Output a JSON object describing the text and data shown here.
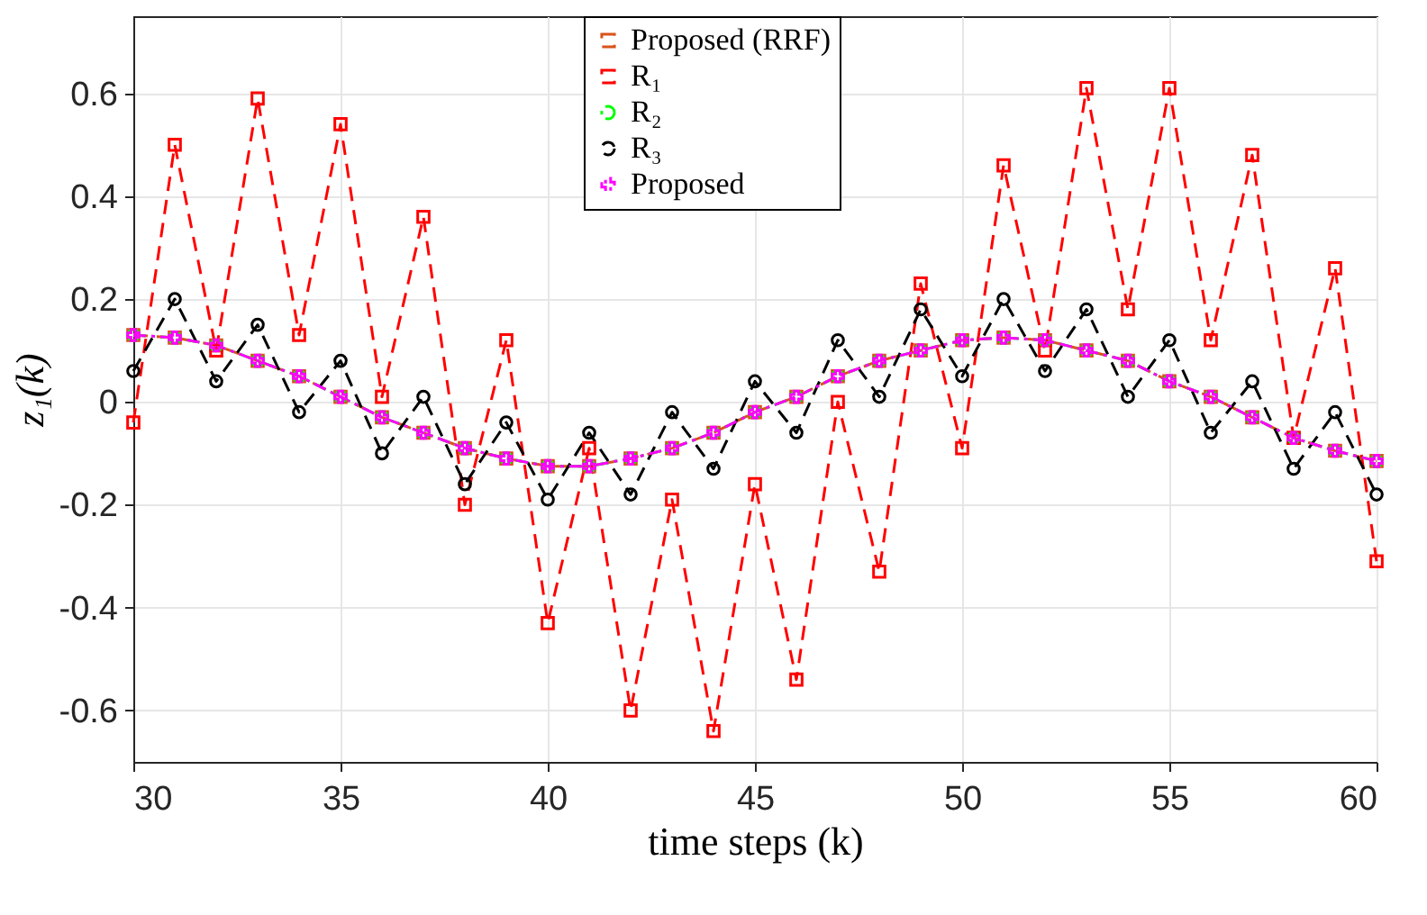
{
  "chart_data": {
    "type": "line",
    "xlabel": "time steps (k)",
    "ylabel": "z₁(k)",
    "x": [
      30,
      31,
      32,
      33,
      34,
      35,
      36,
      37,
      38,
      39,
      40,
      41,
      42,
      43,
      44,
      45,
      46,
      47,
      48,
      49,
      50,
      51,
      52,
      53,
      54,
      55,
      56,
      57,
      58,
      59,
      60
    ],
    "series": [
      {
        "name": "Proposed (RRF)",
        "color": "#d95319",
        "marker": "square",
        "line_style": "dashed",
        "values": [
          0.13,
          0.125,
          0.11,
          0.08,
          0.05,
          0.01,
          -0.03,
          -0.06,
          -0.09,
          -0.11,
          -0.125,
          -0.125,
          -0.11,
          -0.09,
          -0.06,
          -0.02,
          0.01,
          0.05,
          0.08,
          0.1,
          0.12,
          0.125,
          0.12,
          0.1,
          0.08,
          0.04,
          0.01,
          -0.03,
          -0.07,
          -0.095,
          -0.115
        ]
      },
      {
        "name": "R₁",
        "color": "#ff0000",
        "marker": "square",
        "line_style": "dashed",
        "values": [
          -0.04,
          0.5,
          0.1,
          0.59,
          0.13,
          0.54,
          0.01,
          0.36,
          -0.2,
          0.12,
          -0.43,
          -0.09,
          -0.6,
          -0.19,
          -0.64,
          -0.16,
          -0.54,
          0.0,
          -0.33,
          0.23,
          -0.09,
          0.46,
          0.1,
          0.61,
          0.18,
          0.61,
          0.12,
          0.48,
          -0.07,
          0.26,
          -0.31
        ]
      },
      {
        "name": "R₂",
        "color": "#00ff00",
        "marker": "circle",
        "line_style": "dotted",
        "values": [
          0.13,
          0.125,
          0.11,
          0.08,
          0.05,
          0.01,
          -0.03,
          -0.06,
          -0.09,
          -0.11,
          -0.125,
          -0.125,
          -0.11,
          -0.09,
          -0.06,
          -0.02,
          0.01,
          0.05,
          0.08,
          0.1,
          0.12,
          0.125,
          0.12,
          0.1,
          0.08,
          0.04,
          0.01,
          -0.03,
          -0.07,
          -0.095,
          -0.115
        ]
      },
      {
        "name": "R₃",
        "color": "#000000",
        "marker": "circle",
        "line_style": "dashed",
        "values": [
          0.06,
          0.2,
          0.04,
          0.15,
          -0.02,
          0.08,
          -0.1,
          0.01,
          -0.16,
          -0.04,
          -0.19,
          -0.06,
          -0.18,
          -0.02,
          -0.13,
          0.04,
          -0.06,
          0.12,
          0.01,
          0.18,
          0.05,
          0.2,
          0.06,
          0.18,
          0.01,
          0.12,
          -0.06,
          0.04,
          -0.13,
          -0.02,
          -0.18
        ]
      },
      {
        "name": "Proposed",
        "color": "#ff00ff",
        "marker": "cross",
        "line_style": "dotted",
        "values": [
          0.13,
          0.125,
          0.11,
          0.08,
          0.05,
          0.01,
          -0.03,
          -0.06,
          -0.09,
          -0.11,
          -0.125,
          -0.125,
          -0.11,
          -0.09,
          -0.06,
          -0.02,
          0.01,
          0.05,
          0.08,
          0.1,
          0.12,
          0.125,
          0.12,
          0.1,
          0.08,
          0.04,
          0.01,
          -0.03,
          -0.07,
          -0.095,
          -0.115
        ]
      }
    ],
    "xlim": [
      30,
      60
    ],
    "xticks": [
      30,
      35,
      40,
      45,
      50,
      55,
      60
    ],
    "ylim": [
      -0.7,
      0.75
    ],
    "yticks": [
      -0.6,
      -0.4,
      -0.2,
      0,
      0.2,
      0.4,
      0.6
    ],
    "grid": true,
    "legend": "top"
  }
}
